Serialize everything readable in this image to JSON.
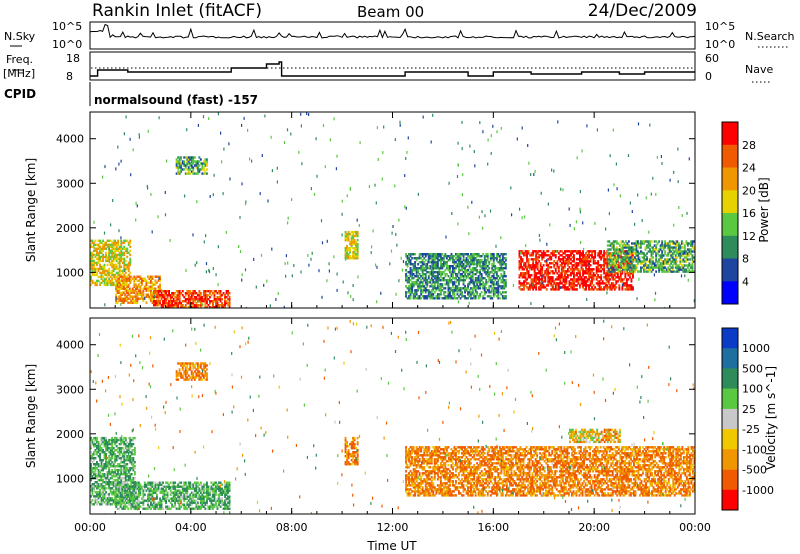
{
  "header": {
    "station": "Rankin Inlet (fitACF)",
    "beam": "Beam 00",
    "date": "24/Dec/2009"
  },
  "noise_panel": {
    "left_label": "N.Sky",
    "right_label": "N.Search",
    "left_ticks": [
      "10^5",
      "10^0"
    ],
    "right_ticks": [
      "10^5",
      "10^0"
    ]
  },
  "freq_panel": {
    "left_label_line1": "Freq.",
    "left_label_line2": "[MHz]",
    "left_ticks": [
      "18",
      "8"
    ],
    "right_label": "Nave",
    "right_ticks": [
      "60",
      "0"
    ]
  },
  "cpid": {
    "label": "CPID",
    "value": "normalsound (fast) -157"
  },
  "colors": {
    "power_scale": [
      "#0000ff",
      "#1e46a0",
      "#2d8c5a",
      "#5ac841",
      "#e6d200",
      "#f09600",
      "#f05a00",
      "#ff0000"
    ],
    "velocity_scale": [
      "#ff0000",
      "#f05a00",
      "#f09600",
      "#f0c800",
      "#c8c8c8",
      "#5ac841",
      "#2d8c5a",
      "#1e6ea0",
      "#0a3cc8"
    ]
  },
  "chart_data": [
    {
      "type": "heatmap",
      "title": "Power",
      "xlabel": "",
      "ylabel": "Slant Range [km]",
      "colorbar_label": "Power [dB]",
      "colorbar_ticks": [
        "28",
        "24",
        "20",
        "16",
        "12",
        "8",
        "4"
      ],
      "x_ticks": [
        "00:00",
        "04:00",
        "08:00",
        "12:00",
        "16:00",
        "20:00",
        "00:00"
      ],
      "y_ticks": [
        "4000",
        "3000",
        "2000",
        "1000"
      ],
      "xlim_hours": [
        0,
        24
      ],
      "ylim_km": [
        200,
        4600
      ],
      "regions": [
        {
          "t": [
            0.0,
            1.6
          ],
          "r": [
            700,
            1700
          ],
          "level": 16
        },
        {
          "t": [
            1.0,
            2.8
          ],
          "r": [
            300,
            900
          ],
          "level": 20
        },
        {
          "t": [
            2.5,
            5.5
          ],
          "r": [
            200,
            600
          ],
          "level": 26
        },
        {
          "t": [
            3.4,
            4.6
          ],
          "r": [
            3200,
            3600
          ],
          "level": 10
        },
        {
          "t": [
            10.1,
            10.6
          ],
          "r": [
            1300,
            1900
          ],
          "level": 16
        },
        {
          "t": [
            12.5,
            16.5
          ],
          "r": [
            400,
            1400
          ],
          "level": 8
        },
        {
          "t": [
            17.0,
            21.5
          ],
          "r": [
            600,
            1500
          ],
          "level": 28
        },
        {
          "t": [
            20.5,
            24.0
          ],
          "r": [
            1000,
            1700
          ],
          "level": 10
        }
      ]
    },
    {
      "type": "heatmap",
      "title": "Velocity",
      "xlabel": "Time UT",
      "ylabel": "Slant Range [km]",
      "colorbar_label": "Velocity [m s^-1]",
      "colorbar_ticks": [
        "1000",
        "500",
        "100",
        "25",
        "-25",
        "-100",
        "-500",
        "-1000"
      ],
      "x_ticks": [
        "00:00",
        "04:00",
        "08:00",
        "12:00",
        "16:00",
        "20:00",
        "00:00"
      ],
      "y_ticks": [
        "4000",
        "3000",
        "2000",
        "1000"
      ],
      "xlim_hours": [
        0,
        24
      ],
      "ylim_km": [
        200,
        4600
      ],
      "regions": [
        {
          "t": [
            0.0,
            1.8
          ],
          "r": [
            400,
            1900
          ],
          "level": 100
        },
        {
          "t": [
            1.0,
            5.5
          ],
          "r": [
            300,
            900
          ],
          "level": 100
        },
        {
          "t": [
            3.4,
            4.6
          ],
          "r": [
            3200,
            3600
          ],
          "level": -100
        },
        {
          "t": [
            10.1,
            10.6
          ],
          "r": [
            1300,
            1900
          ],
          "level": -100
        },
        {
          "t": [
            12.5,
            16.5
          ],
          "r": [
            600,
            1700
          ],
          "level": -100
        },
        {
          "t": [
            16.5,
            24.0
          ],
          "r": [
            600,
            1700
          ],
          "level": -100
        },
        {
          "t": [
            19.0,
            21.0
          ],
          "r": [
            1800,
            2100
          ],
          "level": -25
        }
      ]
    }
  ]
}
